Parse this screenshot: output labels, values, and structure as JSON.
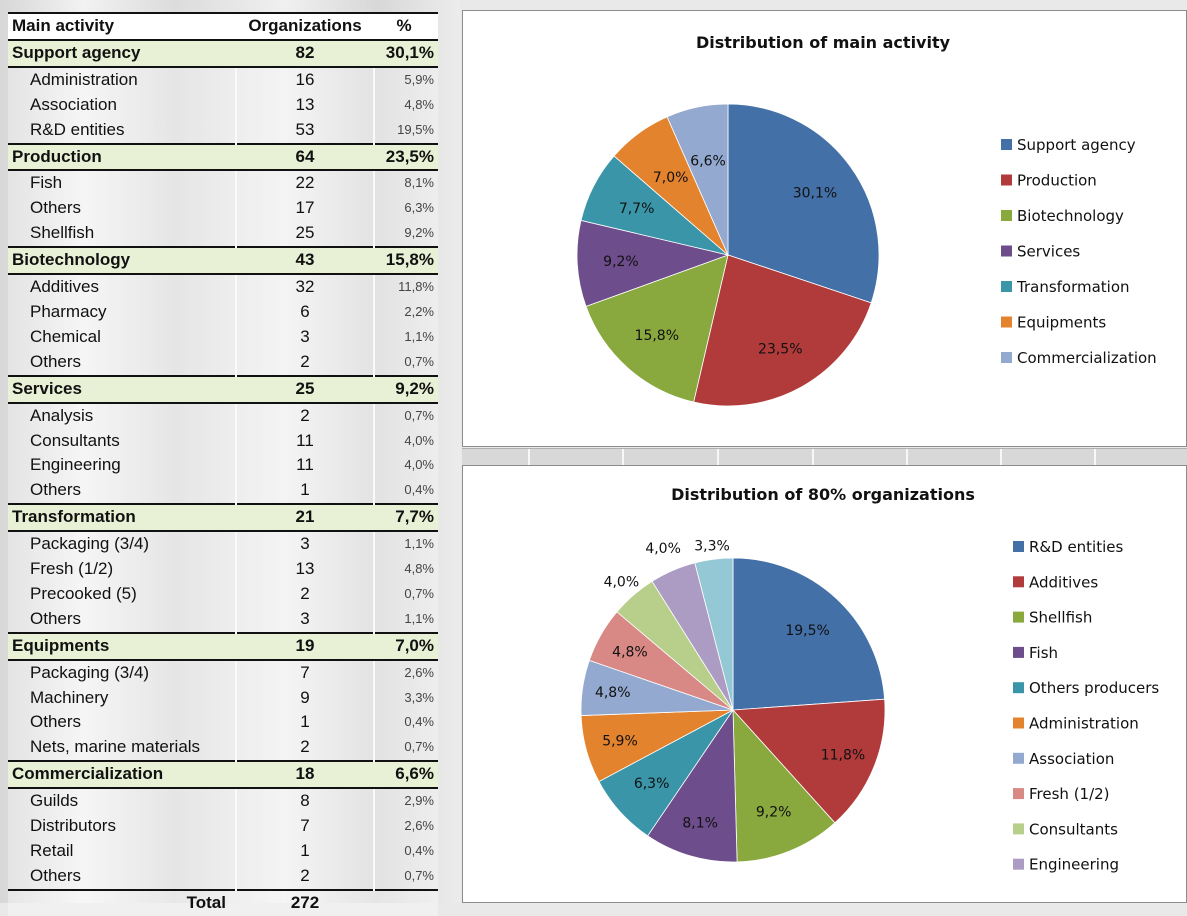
{
  "table": {
    "headers": {
      "name": "Main activity",
      "orgs": "Organizations",
      "pct": "%"
    },
    "groups": [
      {
        "name": "Support agency",
        "orgs": "82",
        "pct": "30,1%",
        "items": [
          {
            "name": "Administration",
            "orgs": "16",
            "pct": "5,9%"
          },
          {
            "name": "Association",
            "orgs": "13",
            "pct": "4,8%"
          },
          {
            "name": "R&D entities",
            "orgs": "53",
            "pct": "19,5%"
          }
        ]
      },
      {
        "name": "Production",
        "orgs": "64",
        "pct": "23,5%",
        "items": [
          {
            "name": "Fish",
            "orgs": "22",
            "pct": "8,1%"
          },
          {
            "name": "Others",
            "orgs": "17",
            "pct": "6,3%"
          },
          {
            "name": "Shellfish",
            "orgs": "25",
            "pct": "9,2%"
          }
        ]
      },
      {
        "name": "Biotechnology",
        "orgs": "43",
        "pct": "15,8%",
        "items": [
          {
            "name": "Additives",
            "orgs": "32",
            "pct": "11,8%"
          },
          {
            "name": "Pharmacy",
            "orgs": "6",
            "pct": "2,2%"
          },
          {
            "name": "Chemical",
            "orgs": "3",
            "pct": "1,1%"
          },
          {
            "name": "Others",
            "orgs": "2",
            "pct": "0,7%"
          }
        ]
      },
      {
        "name": "Services",
        "orgs": "25",
        "pct": "9,2%",
        "items": [
          {
            "name": "Analysis",
            "orgs": "2",
            "pct": "0,7%"
          },
          {
            "name": "Consultants",
            "orgs": "11",
            "pct": "4,0%"
          },
          {
            "name": "Engineering",
            "orgs": "11",
            "pct": "4,0%"
          },
          {
            "name": "Others",
            "orgs": "1",
            "pct": "0,4%"
          }
        ]
      },
      {
        "name": "Transformation",
        "orgs": "21",
        "pct": "7,7%",
        "items": [
          {
            "name": "Packaging (3/4)",
            "orgs": "3",
            "pct": "1,1%"
          },
          {
            "name": "Fresh (1/2)",
            "orgs": "13",
            "pct": "4,8%"
          },
          {
            "name": "Precooked (5)",
            "orgs": "2",
            "pct": "0,7%"
          },
          {
            "name": "Others",
            "orgs": "3",
            "pct": "1,1%"
          }
        ]
      },
      {
        "name": "Equipments",
        "orgs": "19",
        "pct": "7,0%",
        "items": [
          {
            "name": "Packaging (3/4)",
            "orgs": "7",
            "pct": "2,6%"
          },
          {
            "name": "Machinery",
            "orgs": "9",
            "pct": "3,3%"
          },
          {
            "name": "Others",
            "orgs": "1",
            "pct": "0,4%"
          },
          {
            "name": "Nets, marine materials",
            "orgs": "2",
            "pct": "0,7%"
          }
        ]
      },
      {
        "name": "Commercialization",
        "orgs": "18",
        "pct": "6,6%",
        "items": [
          {
            "name": "Guilds",
            "orgs": "8",
            "pct": "2,9%"
          },
          {
            "name": "Distributors",
            "orgs": "7",
            "pct": "2,6%"
          },
          {
            "name": "Retail",
            "orgs": "1",
            "pct": "0,4%"
          },
          {
            "name": "Others",
            "orgs": "2",
            "pct": "0,7%"
          }
        ]
      }
    ],
    "total": {
      "label": "Total",
      "orgs": "272"
    }
  },
  "chart_data": [
    {
      "type": "pie",
      "title": "Distribution of main activity",
      "legend_position": "right",
      "slices": [
        {
          "name": "Support agency",
          "value": 30.1,
          "label": "30,1%",
          "color": "#4470a8"
        },
        {
          "name": "Production",
          "value": 23.5,
          "label": "23,5%",
          "color": "#b13b3a"
        },
        {
          "name": "Biotechnology",
          "value": 15.8,
          "label": "15,8%",
          "color": "#89a93f"
        },
        {
          "name": "Services",
          "value": 9.2,
          "label": "9,2%",
          "color": "#6e4d8c"
        },
        {
          "name": "Transformation",
          "value": 7.7,
          "label": "7,7%",
          "color": "#3a95a9"
        },
        {
          "name": "Equipments",
          "value": 7.0,
          "label": "7,0%",
          "color": "#e4832e"
        },
        {
          "name": "Commercialization",
          "value": 6.6,
          "label": "6,6%",
          "color": "#93a9d0"
        }
      ]
    },
    {
      "type": "pie",
      "title": "Distribution of 80% organizations",
      "legend_position": "right",
      "slices": [
        {
          "name": "R&D entities",
          "value": 19.5,
          "label": "19,5%",
          "color": "#4470a8"
        },
        {
          "name": "Additives",
          "value": 11.8,
          "label": "11,8%",
          "color": "#b13b3a"
        },
        {
          "name": "Shellfish",
          "value": 9.2,
          "label": "9,2%",
          "color": "#89a93f"
        },
        {
          "name": "Fish",
          "value": 8.1,
          "label": "8,1%",
          "color": "#6e4d8c"
        },
        {
          "name": "Others producers",
          "value": 6.3,
          "label": "6,3%",
          "color": "#3a95a9"
        },
        {
          "name": "Administration",
          "value": 5.9,
          "label": "5,9%",
          "color": "#e4832e"
        },
        {
          "name": "Association",
          "value": 4.8,
          "label": "4,8%",
          "color": "#93a9d0"
        },
        {
          "name": "Fresh (1/2)",
          "value": 4.8,
          "label": "4,8%",
          "color": "#d98985"
        },
        {
          "name": "Consultants",
          "value": 4.0,
          "label": "4,0%",
          "color": "#b7cf8a"
        },
        {
          "name": "Engineering",
          "value": 4.0,
          "label": "4,0%",
          "color": "#ac9cc3"
        },
        {
          "name": "",
          "value": 3.3,
          "label": "3,3%",
          "color": "#93c8d4"
        }
      ]
    }
  ]
}
